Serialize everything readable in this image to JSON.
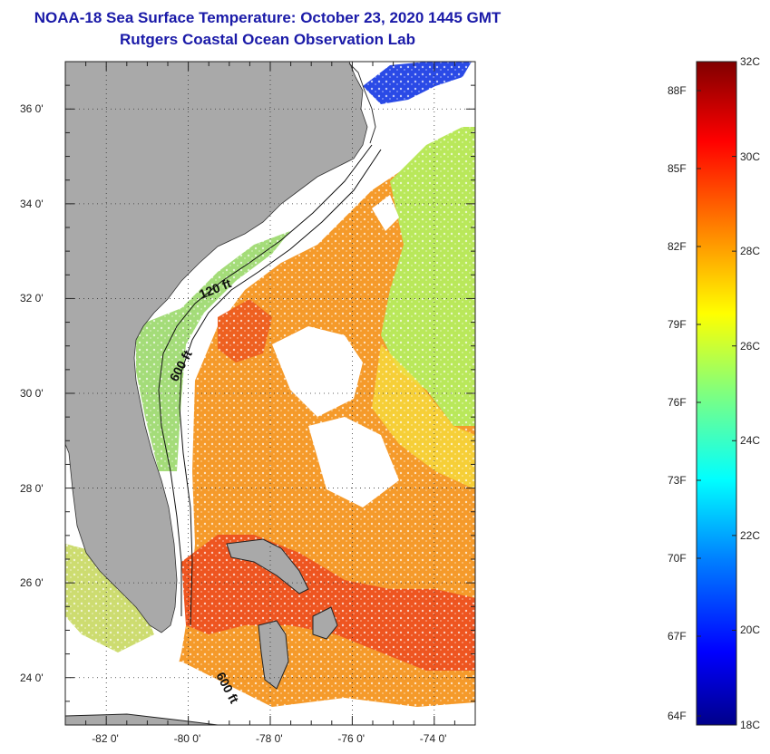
{
  "title": {
    "line1": "NOAA-18 Sea Surface Temperature:  October 23, 2020 1445 GMT",
    "line2": "Rutgers Coastal Ocean Observation Lab"
  },
  "map": {
    "lon_range": [
      -83,
      -73
    ],
    "lat_range": [
      23,
      37
    ],
    "lat_ticks": [
      {
        "value": 36,
        "label": "36 0'"
      },
      {
        "value": 34,
        "label": "34 0'"
      },
      {
        "value": 32,
        "label": "32 0'"
      },
      {
        "value": 30,
        "label": "30 0'"
      },
      {
        "value": 28,
        "label": "28 0'"
      },
      {
        "value": 26,
        "label": "26 0'"
      },
      {
        "value": 24,
        "label": "24 0'"
      }
    ],
    "lon_ticks": [
      {
        "value": -82,
        "label": "-82 0'"
      },
      {
        "value": -80,
        "label": "-80 0'"
      },
      {
        "value": -78,
        "label": "-78 0'"
      },
      {
        "value": -76,
        "label": "-76 0'"
      },
      {
        "value": -74,
        "label": "-74 0'"
      }
    ],
    "contours": [
      {
        "label": "120 ft"
      },
      {
        "label": "600 ft"
      },
      {
        "label": "600 ft"
      }
    ],
    "colors": {
      "land": "#a9a9a9",
      "cloud": "#ffffff",
      "warm_water": "#f28a1e",
      "hot_water": "#ea4a1a",
      "cool_water": "#a6e04a",
      "cold_water": "#1a4ae0"
    }
  },
  "colorbar": {
    "celsius": [
      "32C",
      "30C",
      "28C",
      "26C",
      "24C",
      "22C",
      "20C",
      "18C"
    ],
    "fahrenheit": [
      "88F",
      "85F",
      "82F",
      "79F",
      "76F",
      "73F",
      "70F",
      "67F",
      "64F"
    ],
    "range_c": [
      18,
      32
    ],
    "colors": [
      "#00008a",
      "#0000ff",
      "#0080ff",
      "#00ffff",
      "#7fff7f",
      "#ffff00",
      "#ff8000",
      "#ff0000",
      "#800000"
    ]
  }
}
